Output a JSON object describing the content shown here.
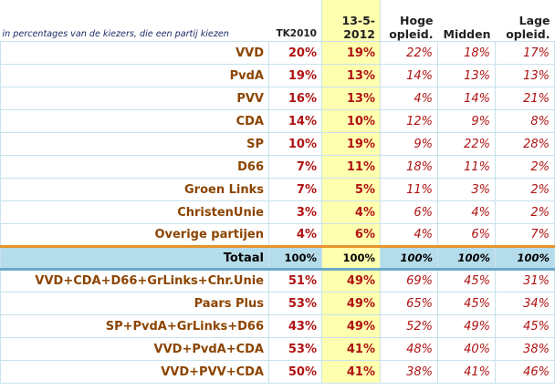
{
  "header": {
    "caption": "in percentages van de kiezers, die een partij kiezen",
    "cols": [
      [
        "TK2010"
      ],
      [
        "13-5-",
        "2012"
      ],
      [
        "Hoge",
        "opleid."
      ],
      [
        "Midden"
      ],
      [
        "Lage",
        "opleid."
      ]
    ]
  },
  "rows": [
    {
      "label": "VVD",
      "values": [
        "20%",
        "19%",
        "22%",
        "18%",
        "17%"
      ]
    },
    {
      "label": "PvdA",
      "values": [
        "19%",
        "13%",
        "14%",
        "13%",
        "13%"
      ]
    },
    {
      "label": "PVV",
      "values": [
        "16%",
        "13%",
        "4%",
        "14%",
        "21%"
      ]
    },
    {
      "label": "CDA",
      "values": [
        "14%",
        "10%",
        "12%",
        "9%",
        "8%"
      ]
    },
    {
      "label": "SP",
      "values": [
        "10%",
        "19%",
        "9%",
        "22%",
        "28%"
      ]
    },
    {
      "label": "D66",
      "values": [
        "7%",
        "11%",
        "18%",
        "11%",
        "2%"
      ]
    },
    {
      "label": "Groen Links",
      "values": [
        "7%",
        "5%",
        "11%",
        "3%",
        "2%"
      ]
    },
    {
      "label": "ChristenUnie",
      "values": [
        "3%",
        "4%",
        "6%",
        "4%",
        "2%"
      ]
    },
    {
      "label": "Overige partijen",
      "values": [
        "4%",
        "6%",
        "4%",
        "6%",
        "7%"
      ]
    }
  ],
  "total": {
    "label": "Totaal",
    "values": [
      "100%",
      "100%",
      "100%",
      "100%",
      "100%"
    ]
  },
  "coalitions": [
    {
      "label": "VVD+CDA+D66+GrLinks+Chr.Unie",
      "values": [
        "51%",
        "49%",
        "69%",
        "45%",
        "31%"
      ]
    },
    {
      "label": "Paars Plus",
      "values": [
        "53%",
        "49%",
        "65%",
        "45%",
        "34%"
      ]
    },
    {
      "label": "SP+PvdA+GrLinks+D66",
      "values": [
        "43%",
        "49%",
        "52%",
        "49%",
        "45%"
      ]
    },
    {
      "label": "VVD+PvdA+CDA",
      "values": [
        "53%",
        "41%",
        "48%",
        "40%",
        "38%"
      ]
    },
    {
      "label": "VVD+PVV+CDA",
      "values": [
        "50%",
        "41%",
        "38%",
        "41%",
        "46%"
      ]
    }
  ],
  "colors": {
    "label": "#8c4400",
    "value": "#b01212",
    "highlight": "#ffffb0",
    "total_bg": "#b5dcea",
    "grid": "#c9e2ec",
    "separator_orange": "#e6942c",
    "separator_blue": "#6aa9c6"
  }
}
